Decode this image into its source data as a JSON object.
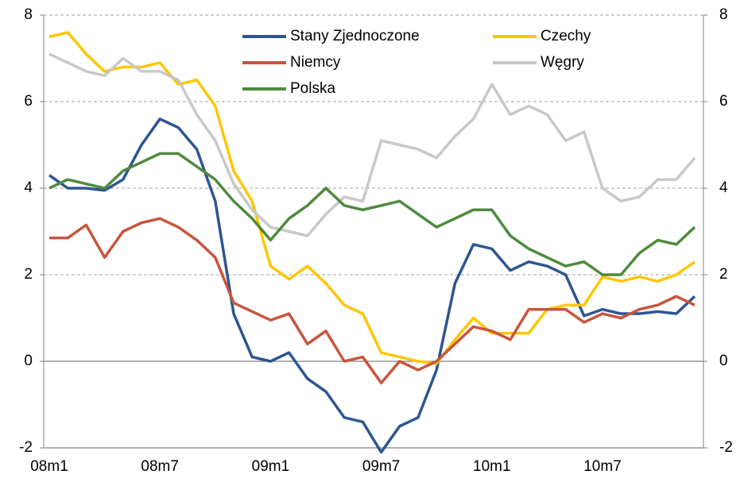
{
  "chart_data": {
    "type": "line",
    "categories": [
      "08m1",
      null,
      null,
      null,
      null,
      null,
      "08m7",
      null,
      null,
      null,
      null,
      null,
      "09m1",
      null,
      null,
      null,
      null,
      null,
      "09m7",
      null,
      null,
      null,
      null,
      null,
      "10m1",
      null,
      null,
      null,
      null,
      null,
      "10m7",
      null,
      null,
      null,
      null,
      null
    ],
    "series": [
      {
        "name": "Stany Zjednoczone",
        "color": "#2e5591",
        "values": [
          4.3,
          4.0,
          4.0,
          3.95,
          4.2,
          5.0,
          5.6,
          5.4,
          4.9,
          3.7,
          1.1,
          0.1,
          0.0,
          0.2,
          -0.4,
          -0.7,
          -1.3,
          -1.4,
          -2.1,
          -1.5,
          -1.3,
          -0.2,
          1.8,
          2.7,
          2.6,
          2.1,
          2.3,
          2.2,
          2.0,
          1.05,
          1.2,
          1.1,
          1.1,
          1.15,
          1.1,
          1.5
        ]
      },
      {
        "name": "Czechy",
        "color": "#ffc600",
        "values": [
          7.5,
          7.6,
          7.1,
          6.7,
          6.8,
          6.8,
          6.9,
          6.4,
          6.5,
          5.9,
          4.4,
          3.7,
          2.2,
          1.9,
          2.2,
          1.8,
          1.3,
          1.1,
          0.2,
          0.1,
          0.0,
          -0.05,
          0.5,
          1.0,
          0.65,
          0.65,
          0.65,
          1.2,
          1.3,
          1.3,
          1.95,
          1.85,
          1.95,
          1.85,
          2.0,
          2.3
        ]
      },
      {
        "name": "Niemcy",
        "color": "#c8553d",
        "values": [
          2.85,
          2.85,
          3.15,
          2.4,
          3.0,
          3.2,
          3.3,
          3.1,
          2.8,
          2.4,
          1.35,
          1.15,
          0.95,
          1.1,
          0.4,
          0.7,
          0.0,
          0.1,
          -0.5,
          0.0,
          -0.2,
          0.0,
          0.4,
          0.8,
          0.7,
          0.5,
          1.2,
          1.2,
          1.2,
          0.9,
          1.1,
          1.0,
          1.2,
          1.3,
          1.5,
          1.3
        ]
      },
      {
        "name": "Węgry",
        "color": "#c8c8c8",
        "values": [
          7.1,
          6.9,
          6.7,
          6.6,
          7.0,
          6.7,
          6.7,
          6.5,
          5.7,
          5.1,
          4.1,
          3.5,
          3.1,
          3.0,
          2.9,
          3.4,
          3.8,
          3.7,
          5.1,
          5.0,
          4.9,
          4.7,
          5.2,
          5.6,
          6.4,
          5.7,
          5.9,
          5.7,
          5.1,
          5.3,
          4.0,
          3.7,
          3.8,
          4.2,
          4.2,
          4.7
        ]
      },
      {
        "name": "Polska",
        "color": "#4e8a3e",
        "values": [
          4.0,
          4.2,
          4.1,
          4.0,
          4.4,
          4.6,
          4.8,
          4.8,
          4.5,
          4.2,
          3.7,
          3.3,
          2.8,
          3.3,
          3.6,
          4.0,
          3.6,
          3.5,
          3.6,
          3.7,
          3.4,
          3.1,
          3.3,
          3.5,
          3.5,
          2.9,
          2.6,
          2.4,
          2.2,
          2.3,
          2.0,
          2.0,
          2.5,
          2.8,
          2.7,
          3.1
        ]
      }
    ],
    "ylim": [
      -2,
      8
    ],
    "yticks": [
      -2,
      0,
      2,
      4,
      6,
      8
    ],
    "y2lim": [
      -2,
      8
    ],
    "y2ticks": [
      -2,
      0,
      2,
      4,
      6,
      8
    ],
    "grid": true
  }
}
